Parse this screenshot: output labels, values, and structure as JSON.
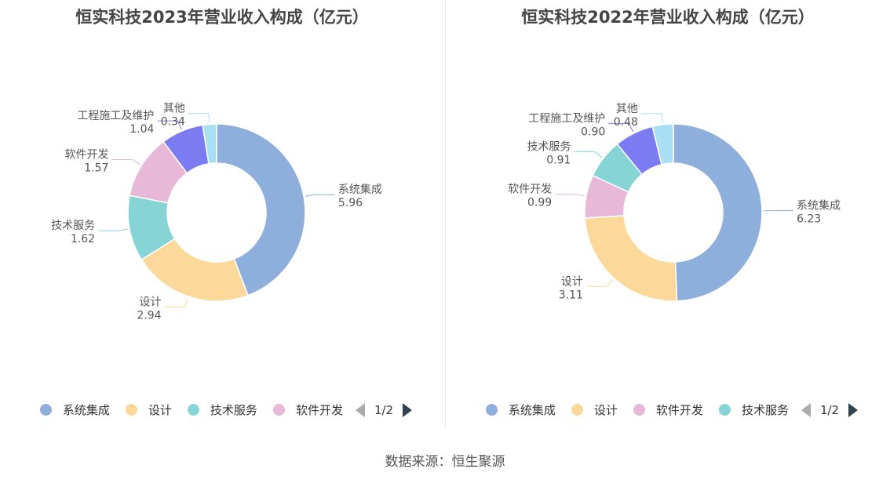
{
  "colors": {
    "系统集成": "#8eaedc",
    "设计": "#fcd99a",
    "技术服务": "#86d4d6",
    "软件开发": "#e8b8d8",
    "工程施工及维护": "#7b7bf2",
    "其他": "#a9dff4"
  },
  "chart_data": [
    {
      "type": "pie",
      "title": "恒实科技2023年营业收入构成（亿元）",
      "slices": [
        {
          "name": "系统集成",
          "value": 5.96
        },
        {
          "name": "设计",
          "value": 2.94
        },
        {
          "name": "技术服务",
          "value": 1.62
        },
        {
          "name": "软件开发",
          "value": 1.57
        },
        {
          "name": "工程施工及维护",
          "value": 1.04
        },
        {
          "name": "其他",
          "value": 0.34
        }
      ],
      "legend": {
        "items": [
          "系统集成",
          "设计",
          "技术服务",
          "软件开发"
        ],
        "page": "1/2",
        "position": "bottom"
      }
    },
    {
      "type": "pie",
      "title": "恒实科技2022年营业收入构成（亿元）",
      "slices": [
        {
          "name": "系统集成",
          "value": 6.23
        },
        {
          "name": "设计",
          "value": 3.11
        },
        {
          "name": "软件开发",
          "value": 0.99
        },
        {
          "name": "技术服务",
          "value": 0.91
        },
        {
          "name": "工程施工及维护",
          "value": 0.9
        },
        {
          "name": "其他",
          "value": 0.48
        }
      ],
      "legend": {
        "items": [
          "系统集成",
          "设计",
          "软件开发",
          "技术服务"
        ],
        "page": "1/2",
        "position": "bottom"
      }
    }
  ],
  "source": "数据来源：恒生聚源"
}
